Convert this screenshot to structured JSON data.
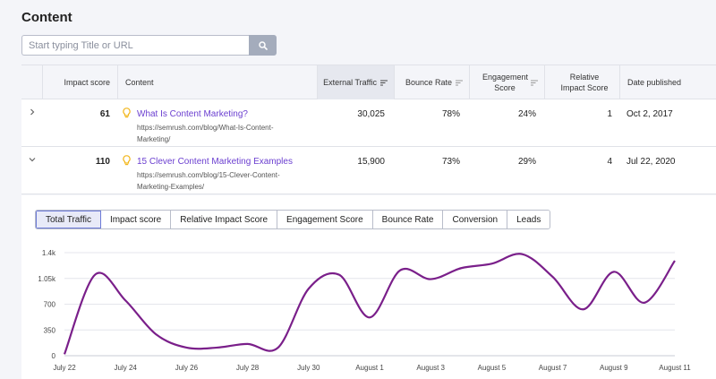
{
  "page": {
    "title": "Content"
  },
  "search": {
    "placeholder": "Start typing Title or URL"
  },
  "table": {
    "headers": {
      "impact": "Impact score",
      "content": "Content",
      "traffic": "External Traffic",
      "bounce": "Bounce Rate",
      "engagement": "Engagement Score",
      "relative": "Relative Impact Score",
      "date": "Date published"
    },
    "rows": [
      {
        "impact": "61",
        "title": "What Is Content Marketing?",
        "url": "https://semrush.com/blog/What-Is-Content-Marketing/",
        "traffic": "30,025",
        "bounce": "78%",
        "engagement": "24%",
        "relative": "1",
        "date": "Oct 2, 2017",
        "expanded": false
      },
      {
        "impact": "110",
        "title": "15 Clever Content Marketing Examples",
        "url": "https://semrush.com/blog/15-Clever-Content-Marketing-Examples/",
        "traffic": "15,900",
        "bounce": "73%",
        "engagement": "29%",
        "relative": "4",
        "date": "Jul 22, 2020",
        "expanded": true
      }
    ]
  },
  "chart_tabs": [
    "Total Traffic",
    "Impact score",
    "Relative Impact Score",
    "Engagement Score",
    "Bounce Rate",
    "Conversion",
    "Leads"
  ],
  "active_tab": "Total Traffic",
  "colors": {
    "line": "#7a1f8a",
    "accent": "#6b3fd0",
    "bulb": "#f2b61b"
  },
  "chart_data": {
    "type": "line",
    "x": [
      "July 22",
      "July 23",
      "July 24",
      "July 25",
      "July 26",
      "July 27",
      "July 28",
      "July 29",
      "July 30",
      "July 31",
      "August 1",
      "August 2",
      "August 3",
      "August 4",
      "August 5",
      "August 6",
      "August 7",
      "August 8",
      "August 9",
      "August 10",
      "August 11"
    ],
    "x_tick_labels": [
      "July 22",
      "July 24",
      "July 26",
      "July 28",
      "July 30",
      "August 1",
      "August 3",
      "August 5",
      "August 7",
      "August 9",
      "August 11"
    ],
    "series": [
      {
        "values": [
          20,
          1100,
          750,
          290,
          110,
          110,
          160,
          110,
          910,
          1100,
          520,
          1160,
          1040,
          1190,
          1250,
          1380,
          1070,
          630,
          1140,
          720,
          1290
        ]
      }
    ],
    "y_ticks": [
      "0",
      "350",
      "700",
      "1.05k",
      "1.4k"
    ],
    "ylim": [
      0,
      1400
    ],
    "grid": true
  }
}
